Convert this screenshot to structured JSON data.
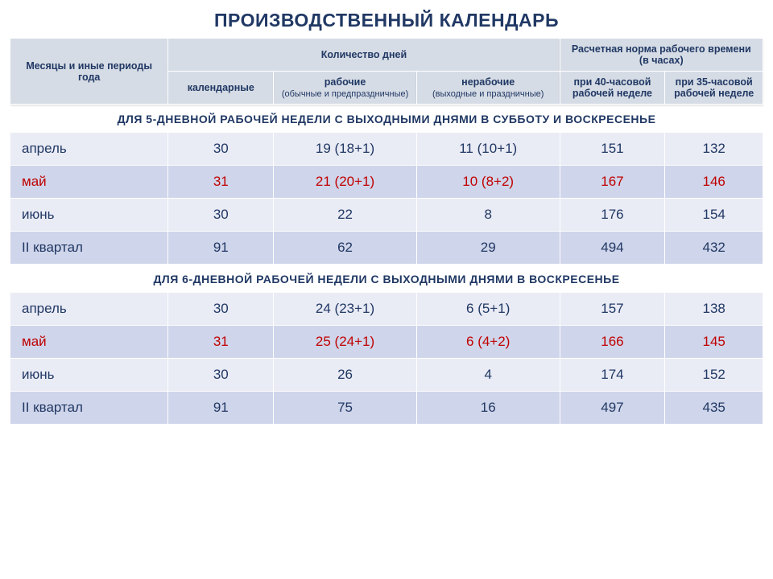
{
  "title": "ПРОИЗВОДСТВЕННЫЙ КАЛЕНДАРЬ",
  "header": {
    "periods": "Месяцы и иные периоды года",
    "days_group": "Количество дней",
    "hours_group_line1": "Расчетная норма рабочего времени",
    "hours_group_line2": "(в часах)",
    "calendar": "календарные",
    "working_line1": "рабочие",
    "working_line2": "(обычные и предпраздничные)",
    "nonworking_line1": "нерабочие",
    "nonworking_line2": "(выходные и праздничные)",
    "h40": "при 40-часовой рабочей неделе",
    "h35": "при 35-часовой рабочей неделе"
  },
  "section5_label": "ДЛЯ 5-ДНЕВНОЙ РАБОЧЕЙ НЕДЕЛИ С ВЫХОДНЫМИ ДНЯМИ В СУББОТУ И ВОСКРЕСЕНЬЕ",
  "section6_label": "ДЛЯ 6-ДНЕВНОЙ РАБОЧЕЙ НЕДЕЛИ С ВЫХОДНЫМИ ДНЯМИ В ВОСКРЕСЕНЬЕ",
  "section5": {
    "rows": [
      {
        "month": "апрель",
        "cal": "30",
        "work": "19 (18+1)",
        "off": "11 (10+1)",
        "h40": "151",
        "h35": "132",
        "shade": "odd",
        "highlight": false
      },
      {
        "month": "май",
        "cal": "31",
        "work": "21 (20+1)",
        "off": "10 (8+2)",
        "h40": "167",
        "h35": "146",
        "shade": "even",
        "highlight": true
      },
      {
        "month": "июнь",
        "cal": "30",
        "work": "22",
        "off": "8",
        "h40": "176",
        "h35": "154",
        "shade": "odd",
        "highlight": false
      },
      {
        "month": "II квартал",
        "cal": "91",
        "work": "62",
        "off": "29",
        "h40": "494",
        "h35": "432",
        "shade": "even",
        "highlight": false
      }
    ]
  },
  "section6": {
    "rows": [
      {
        "month": "апрель",
        "cal": "30",
        "work": "24 (23+1)",
        "off": "6 (5+1)",
        "h40": "157",
        "h35": "138",
        "shade": "odd",
        "highlight": false
      },
      {
        "month": "май",
        "cal": "31",
        "work": "25 (24+1)",
        "off": "6 (4+2)",
        "h40": "166",
        "h35": "145",
        "shade": "even",
        "highlight": true
      },
      {
        "month": "июнь",
        "cal": "30",
        "work": "26",
        "off": "4",
        "h40": "174",
        "h35": "152",
        "shade": "odd",
        "highlight": false
      },
      {
        "month": "II квартал",
        "cal": "91",
        "work": "75",
        "off": "16",
        "h40": "497",
        "h35": "435",
        "shade": "even",
        "highlight": false
      }
    ]
  },
  "colors": {
    "header_bg": "#d6dce5",
    "odd_bg": "#e9ebf5",
    "even_bg": "#cfd5ea",
    "text": "#203864",
    "highlight": "#c00000",
    "border": "#ffffff"
  }
}
